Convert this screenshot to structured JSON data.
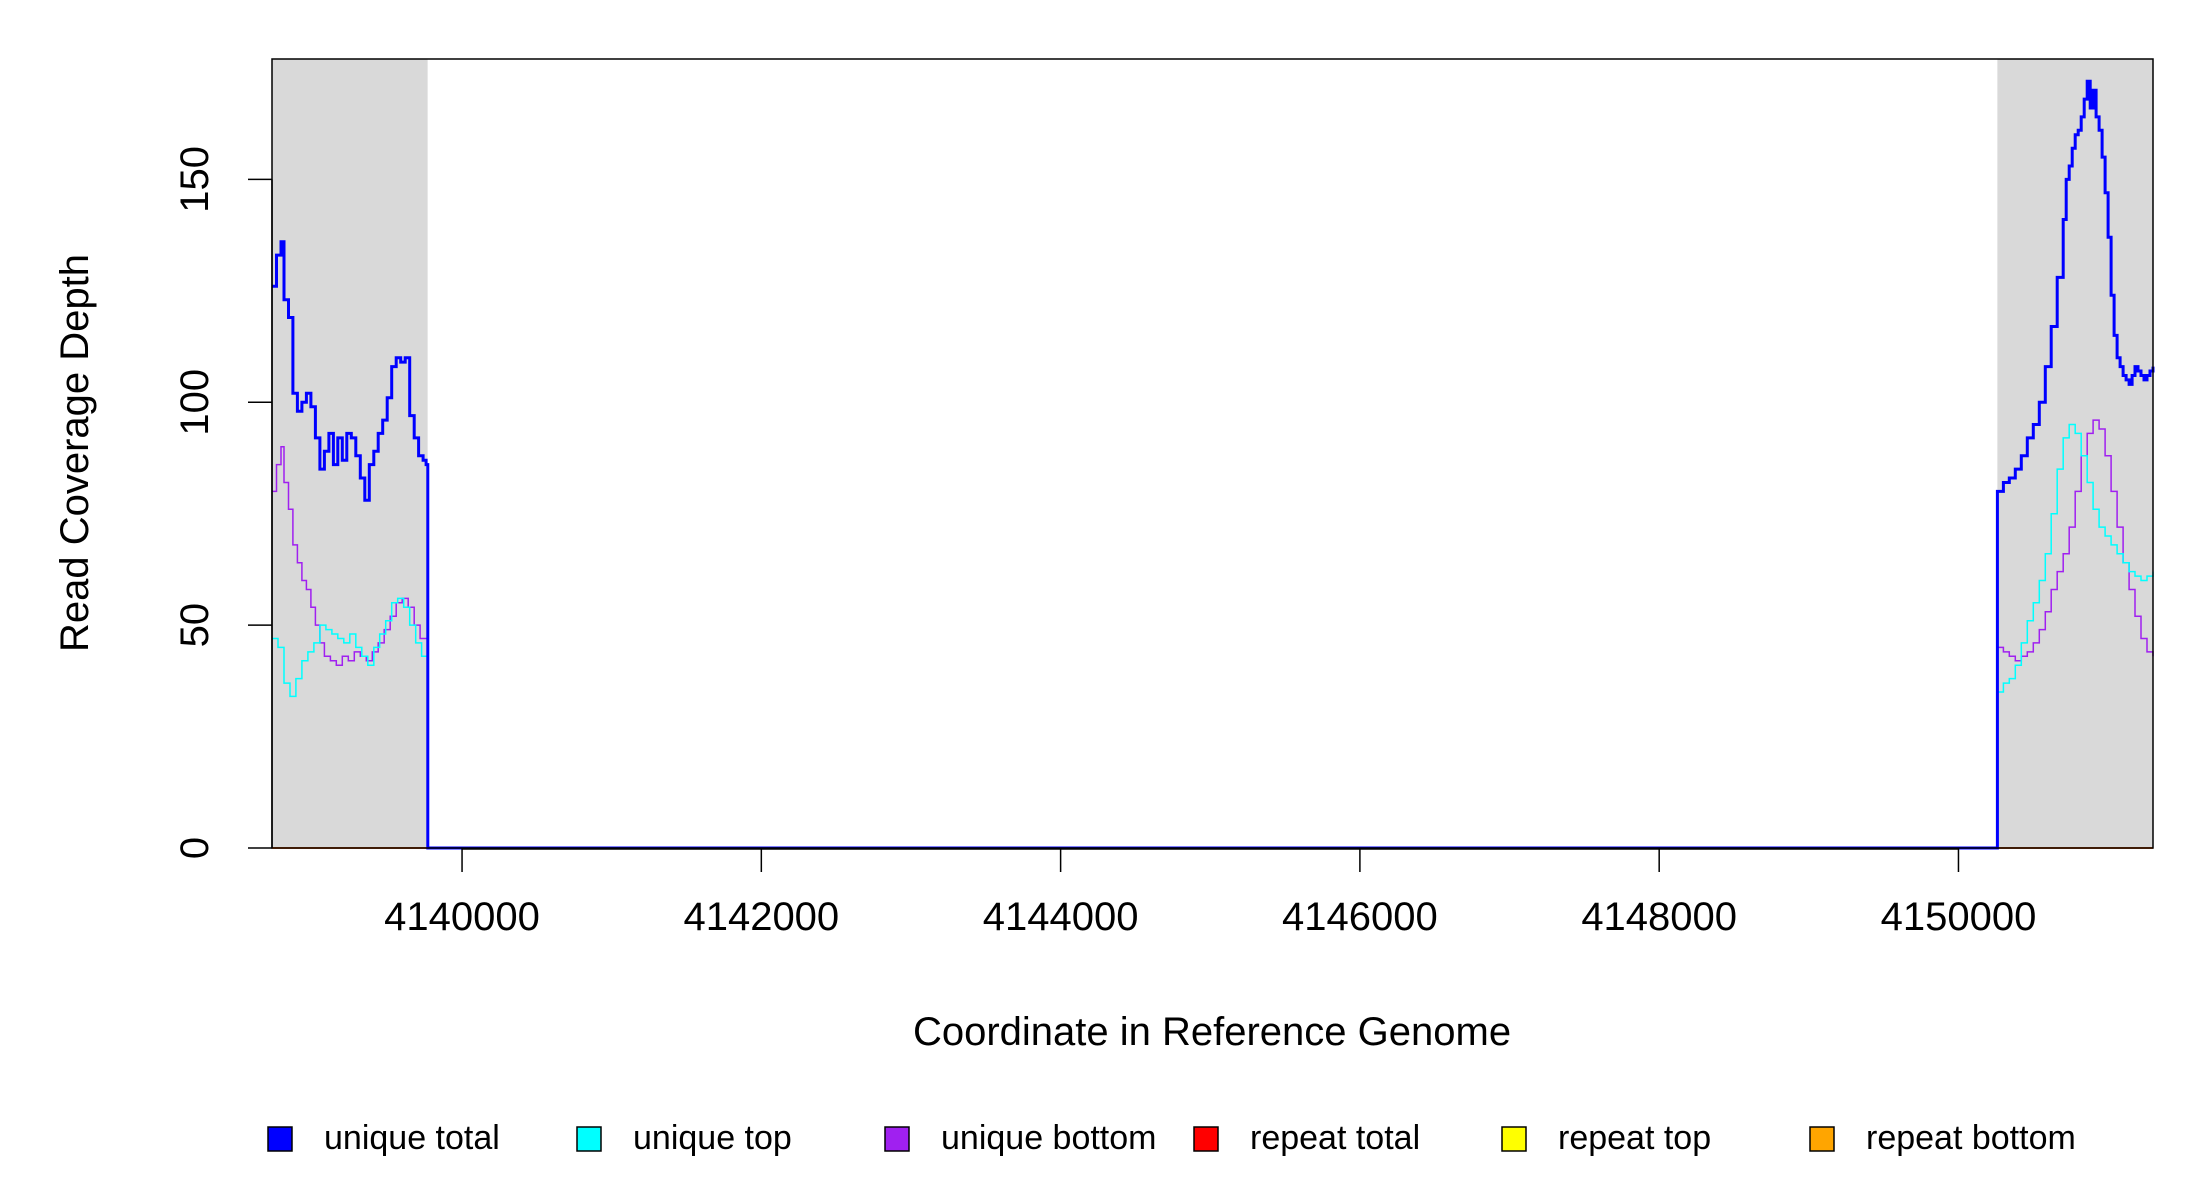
{
  "chart_data": {
    "type": "line",
    "title": "",
    "xlabel": "Coordinate in Reference Genome",
    "ylabel": "Read Coverage Depth",
    "xlim": [
      4138730,
      4151300
    ],
    "ylim": [
      0,
      177
    ],
    "xticks": [
      4140000,
      4142000,
      4144000,
      4146000,
      4148000,
      4150000
    ],
    "xtick_labels": [
      "4140000",
      "4142000",
      "4144000",
      "4146000",
      "4148000",
      "4150000"
    ],
    "yticks": [
      0,
      50,
      100,
      150
    ],
    "ytick_labels": [
      "0",
      "50",
      "100",
      "150"
    ],
    "grid": false,
    "legend_position": "bottom",
    "shaded_regions": [
      {
        "x0": 4138730,
        "x1": 4139770,
        "color": "#d9d9d9"
      },
      {
        "x0": 4150260,
        "x1": 4151300,
        "color": "#d9d9d9"
      }
    ],
    "series": [
      {
        "name": "unique total",
        "color": "#0000ff",
        "width": 3,
        "x": [
          4138730,
          4138760,
          4138790,
          4138810,
          4138840,
          4138870,
          4138900,
          4138930,
          4138960,
          4138990,
          4139020,
          4139050,
          4139080,
          4139110,
          4139140,
          4139170,
          4139200,
          4139230,
          4139260,
          4139290,
          4139320,
          4139350,
          4139380,
          4139410,
          4139440,
          4139470,
          4139500,
          4139530,
          4139560,
          4139590,
          4139620,
          4139650,
          4139680,
          4139710,
          4139740,
          4139760,
          4139770,
          4139771,
          4141000,
          4143000,
          4145000,
          4147000,
          4149000,
          4150259,
          4150260,
          4150300,
          4150340,
          4150380,
          4150420,
          4150460,
          4150500,
          4150540,
          4150580,
          4150620,
          4150660,
          4150700,
          4150720,
          4150740,
          4150760,
          4150780,
          4150800,
          4150820,
          4150840,
          4150860,
          4150880,
          4150900,
          4150920,
          4150940,
          4150960,
          4150980,
          4151000,
          4151020,
          4151040,
          4151060,
          4151080,
          4151100,
          4151120,
          4151140,
          4151160,
          4151180,
          4151200,
          4151220,
          4151240,
          4151260,
          4151280,
          4151300
        ],
        "y": [
          126,
          133,
          136,
          123,
          119,
          102,
          98,
          100,
          102,
          99,
          92,
          85,
          89,
          93,
          86,
          92,
          87,
          93,
          92,
          88,
          83,
          78,
          86,
          89,
          93,
          96,
          101,
          108,
          110,
          109,
          110,
          97,
          92,
          88,
          87,
          86,
          86,
          0,
          0,
          0,
          0,
          0,
          0,
          0,
          80,
          82,
          83,
          85,
          88,
          92,
          95,
          100,
          108,
          117,
          128,
          141,
          150,
          153,
          157,
          160,
          161,
          164,
          168,
          172,
          166,
          170,
          164,
          161,
          155,
          147,
          137,
          124,
          115,
          110,
          108,
          106,
          105,
          104,
          106,
          108,
          107,
          106,
          105,
          106,
          107,
          108
        ]
      },
      {
        "name": "unique top",
        "color": "#00ffff",
        "width": 1.5,
        "x": [
          4138730,
          4138770,
          4138810,
          4138850,
          4138890,
          4138930,
          4138970,
          4139010,
          4139050,
          4139090,
          4139130,
          4139170,
          4139210,
          4139250,
          4139290,
          4139330,
          4139370,
          4139410,
          4139450,
          4139490,
          4139530,
          4139570,
          4139610,
          4139650,
          4139690,
          4139730,
          4139770,
          4139771,
          4141000,
          4143000,
          4145000,
          4147000,
          4149000,
          4150259,
          4150260,
          4150300,
          4150340,
          4150380,
          4150420,
          4150460,
          4150500,
          4150540,
          4150580,
          4150620,
          4150660,
          4150700,
          4150740,
          4150780,
          4150820,
          4150860,
          4150900,
          4150940,
          4150980,
          4151020,
          4151060,
          4151100,
          4151140,
          4151180,
          4151220,
          4151260,
          4151300
        ],
        "y": [
          47,
          45,
          37,
          34,
          38,
          42,
          44,
          46,
          50,
          49,
          48,
          47,
          46,
          48,
          45,
          43,
          41,
          45,
          48,
          51,
          55,
          56,
          54,
          50,
          46,
          43,
          40,
          0,
          0,
          0,
          0,
          0,
          0,
          0,
          35,
          37,
          38,
          41,
          46,
          51,
          55,
          60,
          66,
          75,
          85,
          92,
          95,
          93,
          88,
          82,
          76,
          72,
          70,
          68,
          66,
          64,
          62,
          61,
          60,
          61,
          62
        ]
      },
      {
        "name": "unique bottom",
        "color": "#a020f0",
        "width": 1.5,
        "x": [
          4138730,
          4138760,
          4138790,
          4138810,
          4138840,
          4138870,
          4138900,
          4138930,
          4138960,
          4138990,
          4139020,
          4139050,
          4139080,
          4139120,
          4139160,
          4139200,
          4139240,
          4139280,
          4139320,
          4139360,
          4139400,
          4139440,
          4139480,
          4139520,
          4139560,
          4139600,
          4139640,
          4139680,
          4139720,
          4139770,
          4139771,
          4141000,
          4143000,
          4145000,
          4147000,
          4149000,
          4150259,
          4150260,
          4150300,
          4150340,
          4150380,
          4150420,
          4150460,
          4150500,
          4150540,
          4150580,
          4150620,
          4150660,
          4150700,
          4150740,
          4150780,
          4150820,
          4150860,
          4150900,
          4150940,
          4150980,
          4151020,
          4151060,
          4151100,
          4151140,
          4151180,
          4151220,
          4151260,
          4151300
        ],
        "y": [
          80,
          86,
          90,
          82,
          76,
          68,
          64,
          60,
          58,
          54,
          50,
          46,
          43,
          42,
          41,
          43,
          42,
          44,
          43,
          42,
          44,
          46,
          49,
          52,
          55,
          56,
          54,
          50,
          47,
          45,
          0,
          0,
          0,
          0,
          0,
          0,
          0,
          45,
          44,
          43,
          42,
          43,
          44,
          46,
          49,
          53,
          58,
          62,
          66,
          72,
          80,
          88,
          93,
          96,
          94,
          88,
          80,
          72,
          64,
          58,
          52,
          47,
          44,
          43
        ]
      },
      {
        "name": "repeat total",
        "color": "#ff0000",
        "width": 1.5,
        "x": [
          4138730,
          4151300
        ],
        "y": [
          0,
          0
        ]
      },
      {
        "name": "repeat top",
        "color": "#ffff00",
        "width": 1.5,
        "x": [
          4138730,
          4151300
        ],
        "y": [
          0,
          0
        ]
      },
      {
        "name": "repeat bottom",
        "color": "#ffa500",
        "width": 1.5,
        "x": [
          4138730,
          4151300
        ],
        "y": [
          0,
          0
        ]
      }
    ]
  }
}
